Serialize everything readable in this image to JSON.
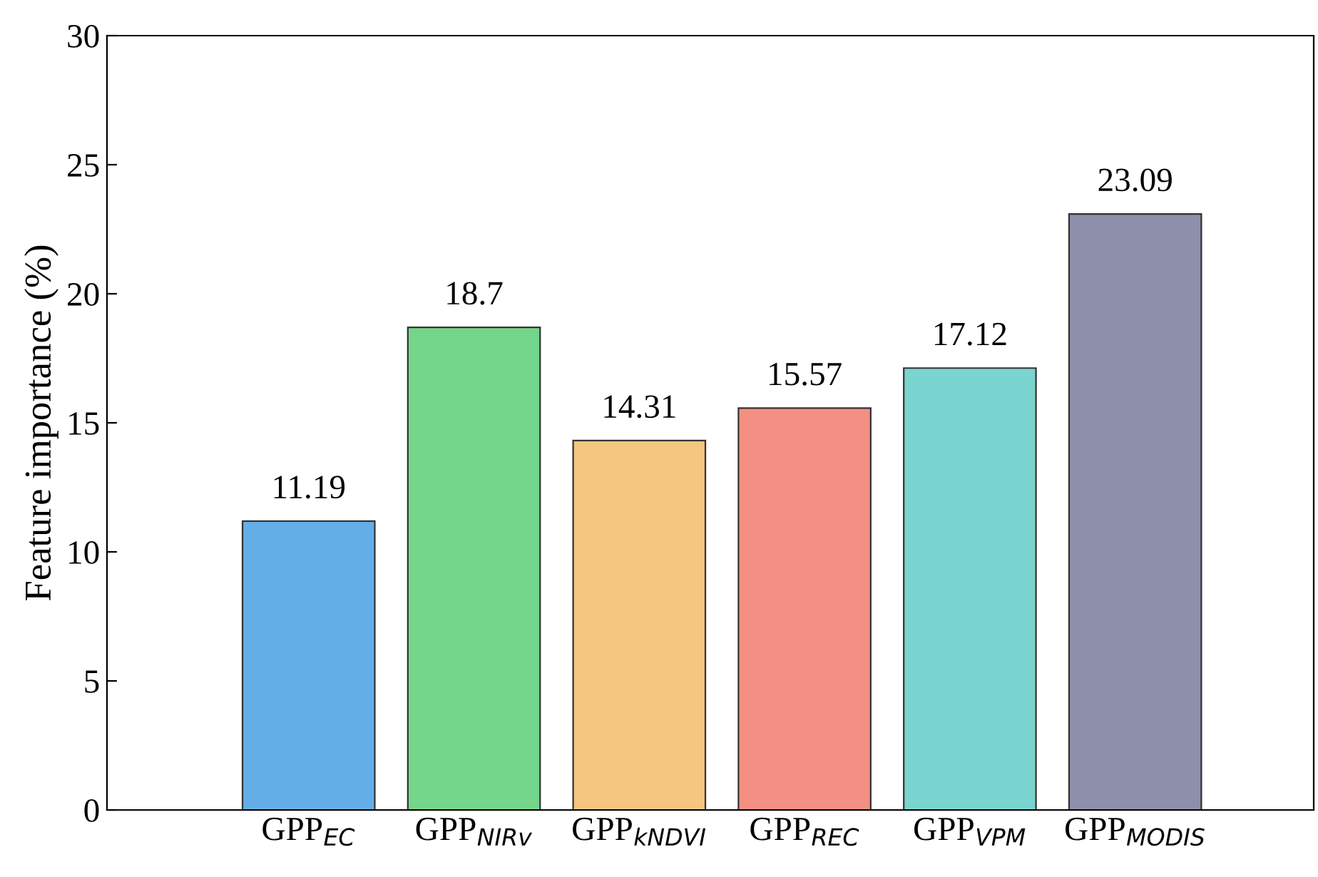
{
  "chart_data": {
    "type": "bar",
    "ylabel": "Feature importance (%)",
    "categories": [
      "GPP$_{EC}$",
      "GPP$_{NIRv}$",
      "GPP$_{kNDVI}$",
      "GPP$_{REC}$",
      "GPP$_{VPM}$",
      "GPP$_{MODIS}$"
    ],
    "values": [
      11.19,
      18.7,
      14.31,
      15.57,
      17.12,
      23.09
    ],
    "colors": [
      "#64aee8",
      "#74d68a",
      "#f5c67e",
      "#f48f84",
      "#7ad5d0",
      "#8d8fab"
    ],
    "data_labels": true,
    "ylim": [
      0,
      30
    ],
    "yticks": [
      0,
      5,
      10,
      15,
      20,
      25,
      30
    ],
    "grid": false,
    "legend": false
  }
}
